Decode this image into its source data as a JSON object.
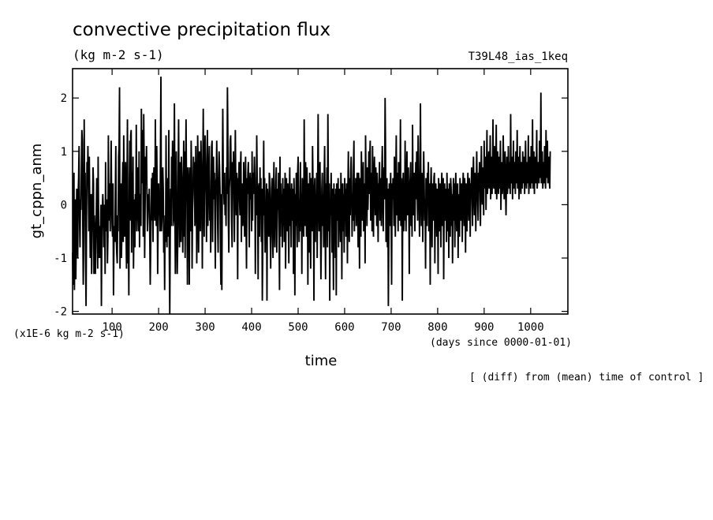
{
  "chart_data": {
    "type": "line",
    "title": "convective precipitation flux",
    "subtitle": "(kg m-2 s-1)",
    "run_label": "T39L48_ias_1keq",
    "xlabel": "time",
    "x_unit": "(days since 0000-01-01)",
    "ylabel": "gt_cppn_anm",
    "y_unit": "(x1E-6 kg m-2 s-1)",
    "footnote": "[ (diff) from (mean) time of control ]",
    "xlim": [
      15,
      1080
    ],
    "ylim": [
      -2.05,
      2.55
    ],
    "x_ticks": [
      100,
      200,
      300,
      400,
      500,
      600,
      700,
      800,
      900,
      1000
    ],
    "x_tick_labels": [
      "100",
      "200",
      "300",
      "400",
      "500",
      "600",
      "700",
      "800",
      "900",
      "1000"
    ],
    "y_ticks": [
      -2,
      -1,
      0,
      1,
      2
    ],
    "y_tick_labels": [
      "-2",
      "-1",
      "0",
      "1",
      "2"
    ],
    "grid": false,
    "series": [
      {
        "x_start": 15,
        "x_step": 1,
        "line_color": "#000000",
        "values": [
          -0.9,
          -1.5,
          0.3,
          0.6,
          -1.6,
          -0.6,
          0.1,
          -1.4,
          -0.4,
          0.3,
          -0.7,
          -1.0,
          0.2,
          0.5,
          1.1,
          -0.3,
          -0.8,
          0.1,
          -0.1,
          0.7,
          1.4,
          1.2,
          -0.4,
          -1.5,
          -0.7,
          1.6,
          0.2,
          0.6,
          -1.0,
          -1.9,
          -0.3,
          0.8,
          0.4,
          1.1,
          0.3,
          -0.5,
          0.9,
          -0.1,
          -1.0,
          -0.3,
          0.2,
          -1.3,
          -0.6,
          -0.1,
          0.7,
          0.4,
          -1.3,
          -0.2,
          -0.5,
          -1.3,
          -0.8,
          -0.2,
          0.5,
          0.2,
          -1.2,
          0.9,
          -0.3,
          -1.0,
          -0.4,
          -1.0,
          -0.5,
          0.0,
          -1.9,
          -0.5,
          -0.1,
          0.2,
          -0.1,
          -0.8,
          0.0,
          -0.1,
          -1.3,
          0.8,
          -0.5,
          -0.1,
          0.1,
          -1.1,
          -0.6,
          1.3,
          -0.3,
          0.4,
          0.3,
          -0.5,
          0.4,
          1.2,
          0.1,
          -0.4,
          -0.6,
          0.4,
          -1.7,
          -0.7,
          -0.4,
          -0.7,
          0.2,
          1.1,
          -0.6,
          -0.9,
          -1.1,
          -0.2,
          -0.5,
          0.9,
          1.1,
          2.2,
          -1.2,
          -0.2,
          0.4,
          -1.0,
          -0.5,
          0.3,
          0.8,
          -0.7,
          1.3,
          0.4,
          -0.6,
          -0.3,
          0.8,
          -0.5,
          -1.2,
          0.2,
          1.6,
          -1.1,
          -0.5,
          -1.7,
          0.4,
          1.2,
          -0.3,
          1.3,
          1.4,
          -0.9,
          0.6,
          -0.2,
          0.9,
          -1.2,
          -0.4,
          0.1,
          -0.8,
          0.2,
          -0.3,
          1.5,
          -0.5,
          0.3,
          0.7,
          0.0,
          -0.5,
          1.0,
          -0.8,
          0.2,
          -0.1,
          -0.4,
          1.8,
          0.6,
          0.4,
          1.4,
          -0.6,
          1.7,
          0.7,
          -1.0,
          0.0,
          0.9,
          0.4,
          1.1,
          0.2,
          -0.5,
          -0.2,
          0.2,
          -0.1,
          0.3,
          -0.6,
          -1.5,
          -0.8,
          -0.1,
          0.5,
          -0.3,
          0.6,
          -0.7,
          0.3,
          0.7,
          0.0,
          -0.3,
          1.6,
          0.3,
          -0.4,
          1.1,
          0.2,
          -1.3,
          -0.3,
          0.4,
          -0.2,
          0.1,
          -0.5,
          1.0,
          2.4,
          -0.5,
          -0.3,
          0.0,
          0.7,
          0.3,
          -0.9,
          -0.4,
          -1.6,
          -0.2,
          -0.7,
          1.3,
          -0.2,
          -0.8,
          0.1,
          0.5,
          -0.6,
          1.4,
          -0.9,
          -2.1,
          -0.6,
          0.3,
          -0.4,
          0.9,
          0.4,
          1.2,
          -0.4,
          -0.3,
          0.5,
          1.9,
          0.0,
          -1.3,
          0.2,
          1.0,
          -0.4,
          -1.3,
          -0.8,
          0.5,
          1.6,
          0.2,
          -0.8,
          0.8,
          0.4,
          -0.7,
          0.9,
          0.5,
          -0.2,
          -0.9,
          0.3,
          1.2,
          -0.6,
          1.0,
          -1.0,
          0.4,
          1.6,
          0.3,
          0.1,
          -1.5,
          0.7,
          0.5,
          -0.4,
          -1.5,
          0.7,
          0.1,
          -0.5,
          1.2,
          0.6,
          -1.2,
          -0.1,
          0.2,
          0.9,
          0.5,
          0.8,
          -0.4,
          -0.1,
          1.1,
          0.4,
          -1.1,
          -0.3,
          1.3,
          0.8,
          -0.9,
          0.0,
          1.0,
          -0.2,
          -0.5,
          1.2,
          0.7,
          0.3,
          -1.2,
          0.6,
          1.8,
          0.1,
          -0.6,
          0.9,
          1.3,
          0.5,
          0.2,
          -0.7,
          0.8,
          1.4,
          -0.4,
          0.3,
          0.6,
          1.1,
          -0.3,
          0.2,
          -0.9,
          0.4,
          1.1,
          1.2,
          -0.7,
          0.5,
          0.9,
          0.1,
          0.6,
          -0.2,
          -1.2,
          0.4,
          0.5,
          1.2,
          0.3,
          -0.4,
          -0.9,
          0.5,
          1.0,
          0.7,
          0.3,
          -0.8,
          -1.5,
          0.2,
          -1.6,
          0.4,
          1.8,
          0.6,
          0.3,
          0.0,
          0.6,
          -0.2,
          0.2,
          -0.4,
          0.7,
          0.2,
          2.2,
          1.2,
          -0.3,
          -0.9,
          0.3,
          0.5,
          1.2,
          1.3,
          0.6,
          -0.3,
          -0.8,
          0.8,
          0.4,
          1.0,
          0.1,
          -0.7,
          0.4,
          1.4,
          0.3,
          -0.2,
          0.6,
          0.2,
          -1.4,
          0.5,
          0.3,
          0.8,
          0.1,
          -0.2,
          0.7,
          1.0,
          -0.7,
          0.2,
          0.4,
          -0.4,
          -0.2,
          0.8,
          0.0,
          -0.6,
          0.3,
          0.9,
          -0.3,
          -1.2,
          0.5,
          0.2,
          0.6,
          0.8,
          -0.1,
          -0.8,
          0.4,
          0.6,
          0.1,
          0.5,
          -0.5,
          1.0,
          -0.3,
          0.6,
          0.2,
          0.4,
          0.9,
          0.5,
          -1.3,
          0.3,
          -0.2,
          1.3,
          0.5,
          -0.1,
          -1.4,
          0.3,
          0.4,
          -0.6,
          0.7,
          -0.2,
          0.5,
          -0.7,
          0.3,
          -1.8,
          -0.8,
          0.0,
          1.2,
          -0.2,
          0.5,
          -0.9,
          -0.1,
          -0.3,
          0.4,
          -1.8,
          0.3,
          0.1,
          -0.4,
          -0.6,
          0.6,
          0.5,
          -0.5,
          -1.2,
          -0.2,
          0.3,
          0.5,
          -0.6,
          -1.0,
          0.2,
          0.8,
          -0.4,
          -0.8,
          0.0,
          0.4,
          0.7,
          -0.9,
          -0.2,
          0.3,
          -0.1,
          0.6,
          -0.5,
          -1.6,
          0.9,
          -0.6,
          0.4,
          -0.3,
          0.2,
          -0.8,
          0.5,
          -0.4,
          0.3,
          -0.7,
          0.1,
          0.6,
          -1.2,
          -0.3,
          0.5,
          -0.5,
          0.2,
          0.4,
          -0.3,
          -1.1,
          0.1,
          0.7,
          -0.4,
          0.3,
          -0.8,
          0.4,
          0.0,
          -0.3,
          0.3,
          -1.3,
          0.5,
          0.1,
          -1.7,
          0.2,
          -0.4,
          0.6,
          -0.2,
          -0.8,
          0.6,
          0.9,
          0.2,
          -0.7,
          0.1,
          -0.5,
          0.8,
          -0.4,
          0.2,
          -1.3,
          0.5,
          0.3,
          -0.3,
          -0.6,
          1.6,
          0.2,
          -0.4,
          0.8,
          0.4,
          -0.6,
          0.7,
          0.1,
          -1.5,
          0.4,
          0.2,
          -0.9,
          0.6,
          -0.1,
          -1.2,
          0.5,
          0.3,
          -0.5,
          1.1,
          0.4,
          -0.2,
          -1.8,
          0.3,
          0.5,
          -0.7,
          0.2,
          -0.3,
          0.6,
          -1.0,
          0.4,
          1.7,
          0.2,
          -0.5,
          0.3,
          0.8,
          -0.2,
          -1.4,
          -0.6,
          0.3,
          0.6,
          -0.4,
          0.2,
          -0.8,
          0.5,
          1.1,
          -0.3,
          -1.4,
          0.4,
          -0.1,
          0.7,
          -0.8,
          1.7,
          0.3,
          -0.5,
          0.4,
          -1.8,
          0.1,
          -0.2,
          0.6,
          0.0,
          -0.9,
          0.3,
          -0.6,
          -1.6,
          0.4,
          -0.5,
          0.2,
          -1.0,
          0.3,
          -1.7,
          0.4,
          0.1,
          -0.3,
          0.5,
          -0.8,
          0.2,
          0.3,
          -0.2,
          -0.7,
          0.6,
          0.1,
          -1.4,
          0.3,
          0.4,
          -0.5,
          0.2,
          -0.9,
          0.5,
          -0.3,
          0.3,
          -0.6,
          0.4,
          0.1,
          -1.1,
          0.3,
          1.0,
          -0.4,
          -0.7,
          0.5,
          -0.2,
          0.6,
          0.9,
          0.4,
          -0.6,
          0.2,
          -0.3,
          0.7,
          1.2,
          -0.5,
          0.4,
          -0.2,
          0.5,
          -0.4,
          0.3,
          0.6,
          0.0,
          -0.8,
          0.6,
          0.3,
          -1.2,
          0.5,
          0.1,
          -0.6,
          1.0,
          0.3,
          -0.3,
          0.4,
          0.8,
          -0.5,
          0.2,
          0.4,
          -1.1,
          1.3,
          0.5,
          0.2,
          -0.4,
          0.7,
          -0.1,
          0.3,
          1.0,
          0.2,
          0.9,
          1.2,
          -0.3,
          0.4,
          0.6,
          -0.5,
          1.1,
          0.2,
          -0.6,
          0.5,
          0.9,
          0.3,
          -0.2,
          0.7,
          0.4,
          -0.4,
          0.6,
          0.1,
          -0.7,
          0.4,
          0.3,
          0.8,
          -0.3,
          0.5,
          0.2,
          -0.4,
          0.6,
          1.1,
          0.2,
          -0.5,
          0.4,
          0.7,
          0.1,
          2.0,
          1.0,
          -0.7,
          -0.3,
          0.5,
          -0.8,
          0.3,
          -1.9,
          -0.6,
          0.4,
          -0.4,
          0.2,
          0.6,
          -0.2,
          -1.5,
          0.4,
          0.1,
          0.5,
          0.3,
          -0.4,
          0.9,
          0.2,
          -0.6,
          0.5,
          1.3,
          -0.2,
          0.6,
          0.1,
          -0.5,
          0.8,
          0.4,
          -0.3,
          0.3,
          1.6,
          -0.4,
          0.5,
          0.2,
          -1.8,
          0.3,
          0.6,
          -0.5,
          0.4,
          -0.3,
          1.2,
          0.1,
          -0.5,
          0.3,
          1.0,
          -0.2,
          0.5,
          0.7,
          0.0,
          -1.3,
          0.3,
          0.5,
          0.8,
          -0.4,
          0.2,
          -0.6,
          1.5,
          0.3,
          -0.2,
          0.4,
          0.6,
          -0.5,
          0.2,
          0.8,
          0.1,
          1.0,
          0.3,
          -0.3,
          1.3,
          0.5,
          0.2,
          -0.6,
          0.4,
          1.9,
          0.3,
          -0.4,
          0.6,
          0.2,
          -0.7,
          0.3,
          1.0,
          0.4,
          -0.3,
          0.1,
          -1.2,
          0.5,
          0.3,
          -0.4,
          0.6,
          0.1,
          0.8,
          -0.5,
          0.2,
          0.4,
          -1.5,
          0.3,
          0.7,
          0.1,
          -0.8,
          0.4,
          0.2,
          -0.3,
          0.5,
          0.6,
          -1.1,
          0.2,
          0.4,
          0.1,
          -0.6,
          0.3,
          0.0,
          -1.3,
          0.5,
          0.2,
          -0.5,
          0.4,
          0.1,
          -0.8,
          0.3,
          0.6,
          -0.4,
          0.2,
          0.5,
          -1.4,
          0.1,
          0.4,
          -0.3,
          0.3,
          0.2,
          -0.7,
          0.6,
          0.1,
          -0.5,
          0.3,
          -1.0,
          0.4,
          0.2,
          -0.6,
          0.5,
          0.3,
          -0.4,
          0.2,
          -1.1,
          0.1,
          0.5,
          -0.3,
          0.4,
          -0.8,
          0.2,
          0.6,
          0.0,
          -0.5,
          0.3,
          0.4,
          -1.0,
          0.2,
          0.1,
          -0.6,
          0.5,
          0.3,
          -0.3,
          0.4,
          0.2,
          -0.7,
          0.3,
          0.6,
          0.1,
          -0.4,
          0.5,
          0.2,
          -0.9,
          0.4,
          0.3,
          -0.5,
          0.2,
          0.6,
          0.1,
          -0.3,
          0.5,
          0.3,
          -0.6,
          0.4,
          0.2,
          0.7,
          0.1,
          -0.4,
          0.5,
          0.9,
          0.3,
          -0.2,
          0.6,
          0.4,
          -0.5,
          0.2,
          1.0,
          0.3,
          0.1,
          -0.3,
          0.6,
          0.4,
          0.8,
          0.2,
          -0.4,
          0.5,
          1.1,
          0.3,
          0.0,
          0.7,
          0.4,
          -0.2,
          1.2,
          0.5,
          0.3,
          0.9,
          -0.1,
          0.6,
          1.4,
          0.2,
          0.4,
          0.8,
          1.0,
          0.3,
          0.6,
          1.3,
          0.1,
          0.5,
          0.9,
          0.2,
          0.7,
          1.6,
          0.4,
          0.3,
          1.1,
          0.6,
          0.2,
          0.8,
          1.5,
          0.1,
          0.5,
          1.0,
          0.4,
          0.2,
          0.9,
          0.3,
          0.7,
          1.2,
          -0.1,
          0.5,
          0.8,
          0.2,
          0.4,
          1.3,
          0.6,
          0.1,
          0.7,
          1.0,
          0.3,
          -0.2,
          0.5,
          0.9,
          0.2,
          0.4,
          1.1,
          0.6,
          0.3,
          0.8,
          0.2,
          1.7,
          0.5,
          0.4,
          0.9,
          0.1,
          0.6,
          1.2,
          0.3,
          0.5,
          0.8,
          0.2,
          1.0,
          0.4,
          0.6,
          1.4,
          0.3,
          0.5,
          0.9,
          0.1,
          0.7,
          1.1,
          0.4,
          0.2,
          0.8,
          0.5,
          0.3,
          1.0,
          0.6,
          0.4,
          0.9,
          0.2,
          0.7,
          1.2,
          0.5,
          0.3,
          0.8,
          0.4,
          0.6,
          1.3,
          0.2,
          0.5,
          0.9,
          0.7,
          0.3,
          1.1,
          0.6,
          0.4,
          1.6,
          0.3,
          0.5,
          1.0,
          0.2,
          0.7,
          0.9,
          0.4,
          0.6,
          1.4,
          0.3,
          0.5,
          0.8,
          0.6,
          0.4,
          1.2,
          0.5,
          0.7,
          2.1,
          0.4,
          0.6,
          1.0,
          0.3,
          0.5,
          0.8,
          0.4,
          1.1,
          0.6,
          0.3,
          1.4,
          0.5,
          0.7,
          1.2,
          0.4,
          0.6,
          0.9,
          0.5,
          0.3,
          1.0
        ]
      }
    ]
  }
}
